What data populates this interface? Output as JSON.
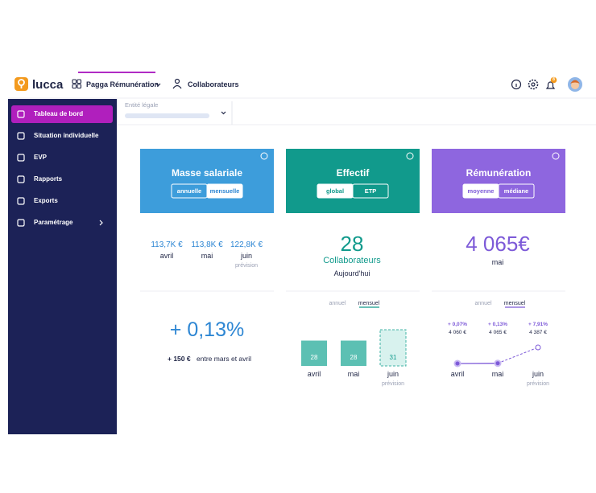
{
  "header": {
    "logo": "lucca",
    "nav": [
      "Pagga Rémunération",
      "Collaborateurs"
    ],
    "notification_count": "8"
  },
  "sidebar": {
    "items": [
      "Tableau de bord",
      "Situation individuelle",
      "EVP",
      "Rapports",
      "Exports",
      "Paramétrage"
    ]
  },
  "filter": {
    "label": "Entité légale"
  },
  "cards": [
    {
      "title": "Masse salariale",
      "toggles": [
        "annuelle",
        "mensuelle"
      ],
      "months": [
        {
          "value": "113,7K €",
          "label": "avril"
        },
        {
          "value": "113,8K €",
          "label": "mai"
        },
        {
          "value": "122,8K €",
          "label": "juin",
          "note": "prévision"
        }
      ],
      "variation": "+ 0,13%",
      "delta": "+ 150 €",
      "delta_text": "entre mars et avril"
    },
    {
      "title": "Effectif",
      "toggles": [
        "global",
        "ETP"
      ],
      "kpi": "28",
      "kpi_unit": "Collaborateurs",
      "kpi_caption": "Aujourd'hui",
      "tabs": [
        "annuel",
        "mensuel"
      ],
      "chart": {
        "type": "bar",
        "categories": [
          "avril",
          "mai",
          "juin"
        ],
        "values": [
          28,
          28,
          31
        ],
        "note": "prévision"
      }
    },
    {
      "title": "Rémunération",
      "toggles": [
        "moyenne",
        "médiane"
      ],
      "kpi": "4 065€",
      "kpi_caption": "mai",
      "tabs": [
        "annuel",
        "mensuel"
      ],
      "chart": {
        "type": "line",
        "categories": [
          "avril",
          "mai",
          "juin"
        ],
        "values": [
          4060,
          4065,
          4387
        ],
        "value_labels": [
          "4 060 €",
          "4 065 €",
          "4 387 €"
        ],
        "changes": [
          "+ 0,07%",
          "+ 0,13%",
          "+ 7,91%"
        ],
        "note": "prévision"
      }
    }
  ]
}
